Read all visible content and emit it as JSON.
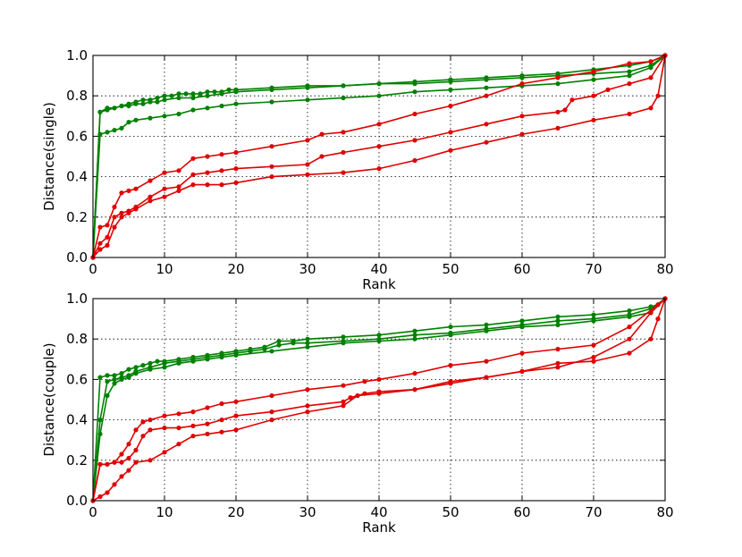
{
  "chart_data": [
    {
      "type": "line",
      "xlabel": "Rank",
      "ylabel": "Distance(single)",
      "xlim": [
        0,
        80
      ],
      "ylim": [
        0.0,
        1.0
      ],
      "xticks": [
        "0",
        "10",
        "20",
        "30",
        "40",
        "50",
        "60",
        "70",
        "80"
      ],
      "yticks": [
        "0.0",
        "0.2",
        "0.4",
        "0.6",
        "0.8",
        "1.0"
      ],
      "grid": true,
      "series": [
        {
          "color": "#008000",
          "x": [
            0,
            1,
            2,
            3,
            4,
            5,
            6,
            7,
            8,
            9,
            10,
            11,
            12,
            13,
            14,
            15,
            16,
            17,
            18,
            19,
            20,
            25,
            30,
            35,
            40,
            45,
            50,
            55,
            60,
            65,
            70,
            75,
            78,
            80
          ],
          "y": [
            0.0,
            0.72,
            0.73,
            0.74,
            0.75,
            0.76,
            0.77,
            0.78,
            0.78,
            0.79,
            0.8,
            0.8,
            0.81,
            0.81,
            0.81,
            0.81,
            0.82,
            0.82,
            0.82,
            0.83,
            0.83,
            0.84,
            0.85,
            0.85,
            0.86,
            0.87,
            0.88,
            0.89,
            0.9,
            0.91,
            0.93,
            0.95,
            0.97,
            1.0
          ]
        },
        {
          "color": "#008000",
          "x": [
            0,
            1,
            2,
            3,
            4,
            5,
            6,
            7,
            8,
            9,
            10,
            12,
            14,
            16,
            18,
            20,
            25,
            30,
            35,
            40,
            45,
            50,
            55,
            60,
            65,
            70,
            75,
            78,
            80
          ],
          "y": [
            0.0,
            0.72,
            0.74,
            0.74,
            0.75,
            0.75,
            0.76,
            0.76,
            0.77,
            0.77,
            0.78,
            0.79,
            0.79,
            0.8,
            0.81,
            0.82,
            0.83,
            0.84,
            0.85,
            0.86,
            0.86,
            0.87,
            0.88,
            0.89,
            0.9,
            0.91,
            0.92,
            0.95,
            1.0
          ]
        },
        {
          "color": "#008000",
          "x": [
            0,
            1,
            2,
            3,
            4,
            5,
            6,
            8,
            10,
            12,
            14,
            16,
            18,
            20,
            25,
            30,
            35,
            40,
            45,
            50,
            55,
            60,
            65,
            70,
            75,
            78,
            80
          ],
          "y": [
            0.0,
            0.61,
            0.62,
            0.63,
            0.64,
            0.67,
            0.68,
            0.69,
            0.7,
            0.71,
            0.73,
            0.74,
            0.75,
            0.76,
            0.77,
            0.78,
            0.79,
            0.8,
            0.82,
            0.83,
            0.84,
            0.85,
            0.86,
            0.88,
            0.9,
            0.94,
            1.0
          ]
        },
        {
          "color": "#e00000",
          "x": [
            0,
            1,
            2,
            3,
            4,
            5,
            6,
            8,
            10,
            12,
            14,
            16,
            18,
            20,
            25,
            30,
            32,
            35,
            40,
            45,
            50,
            55,
            60,
            65,
            70,
            75,
            78,
            80
          ],
          "y": [
            0.0,
            0.15,
            0.16,
            0.25,
            0.32,
            0.33,
            0.34,
            0.38,
            0.42,
            0.43,
            0.49,
            0.5,
            0.51,
            0.52,
            0.55,
            0.58,
            0.61,
            0.62,
            0.66,
            0.71,
            0.75,
            0.8,
            0.86,
            0.89,
            0.92,
            0.96,
            0.97,
            1.0
          ]
        },
        {
          "color": "#e00000",
          "x": [
            0,
            1,
            2,
            3,
            4,
            5,
            6,
            8,
            10,
            12,
            14,
            16,
            18,
            20,
            25,
            30,
            32,
            35,
            40,
            45,
            50,
            55,
            60,
            65,
            66,
            67,
            70,
            72,
            75,
            78,
            80
          ],
          "y": [
            0.0,
            0.07,
            0.1,
            0.2,
            0.22,
            0.23,
            0.25,
            0.3,
            0.34,
            0.35,
            0.41,
            0.42,
            0.43,
            0.44,
            0.45,
            0.46,
            0.5,
            0.52,
            0.55,
            0.58,
            0.62,
            0.66,
            0.7,
            0.72,
            0.73,
            0.78,
            0.8,
            0.83,
            0.86,
            0.89,
            1.0
          ]
        },
        {
          "color": "#e00000",
          "x": [
            0,
            1,
            2,
            3,
            4,
            5,
            6,
            8,
            10,
            12,
            14,
            16,
            18,
            20,
            25,
            30,
            35,
            40,
            45,
            50,
            55,
            60,
            65,
            70,
            75,
            78,
            79,
            80
          ],
          "y": [
            0.0,
            0.04,
            0.06,
            0.15,
            0.2,
            0.22,
            0.24,
            0.28,
            0.3,
            0.33,
            0.36,
            0.36,
            0.36,
            0.37,
            0.4,
            0.41,
            0.42,
            0.44,
            0.48,
            0.53,
            0.57,
            0.61,
            0.64,
            0.68,
            0.71,
            0.74,
            0.8,
            1.0
          ]
        }
      ]
    },
    {
      "type": "line",
      "xlabel": "Rank",
      "ylabel": "Distance(couple)",
      "xlim": [
        0,
        80
      ],
      "ylim": [
        0.0,
        1.0
      ],
      "xticks": [
        "0",
        "10",
        "20",
        "30",
        "40",
        "50",
        "60",
        "70",
        "80"
      ],
      "yticks": [
        "0.0",
        "0.2",
        "0.4",
        "0.6",
        "0.8",
        "1.0"
      ],
      "grid": true,
      "series": [
        {
          "color": "#008000",
          "x": [
            0,
            1,
            2,
            3,
            4,
            5,
            6,
            7,
            8,
            9,
            10,
            12,
            14,
            16,
            18,
            20,
            22,
            24,
            26,
            28,
            30,
            35,
            40,
            45,
            50,
            55,
            60,
            65,
            70,
            75,
            78,
            79,
            80
          ],
          "y": [
            0.0,
            0.61,
            0.62,
            0.62,
            0.63,
            0.65,
            0.66,
            0.67,
            0.68,
            0.69,
            0.69,
            0.7,
            0.71,
            0.72,
            0.73,
            0.74,
            0.75,
            0.76,
            0.79,
            0.79,
            0.8,
            0.81,
            0.82,
            0.84,
            0.86,
            0.87,
            0.89,
            0.91,
            0.92,
            0.94,
            0.96,
            0.97,
            1.0
          ]
        },
        {
          "color": "#008000",
          "x": [
            0,
            1,
            2,
            3,
            4,
            5,
            6,
            8,
            10,
            12,
            14,
            16,
            18,
            20,
            22,
            24,
            26,
            28,
            30,
            35,
            40,
            45,
            50,
            55,
            60,
            65,
            70,
            75,
            78,
            80
          ],
          "y": [
            0.0,
            0.4,
            0.59,
            0.6,
            0.61,
            0.62,
            0.64,
            0.66,
            0.68,
            0.69,
            0.7,
            0.71,
            0.72,
            0.73,
            0.74,
            0.75,
            0.77,
            0.78,
            0.78,
            0.79,
            0.8,
            0.82,
            0.83,
            0.85,
            0.87,
            0.89,
            0.9,
            0.92,
            0.95,
            1.0
          ]
        },
        {
          "color": "#008000",
          "x": [
            0,
            1,
            2,
            3,
            4,
            5,
            6,
            8,
            10,
            12,
            14,
            16,
            18,
            20,
            25,
            30,
            35,
            40,
            45,
            50,
            55,
            60,
            65,
            70,
            75,
            78,
            80
          ],
          "y": [
            0.0,
            0.33,
            0.52,
            0.58,
            0.6,
            0.61,
            0.63,
            0.65,
            0.66,
            0.68,
            0.69,
            0.7,
            0.71,
            0.72,
            0.74,
            0.76,
            0.78,
            0.79,
            0.8,
            0.82,
            0.84,
            0.86,
            0.87,
            0.89,
            0.91,
            0.93,
            1.0
          ]
        },
        {
          "color": "#e00000",
          "x": [
            0,
            1,
            2,
            3,
            4,
            5,
            6,
            7,
            8,
            10,
            12,
            14,
            16,
            18,
            20,
            25,
            30,
            35,
            38,
            40,
            45,
            50,
            55,
            60,
            65,
            70,
            75,
            79,
            80
          ],
          "y": [
            0.0,
            0.18,
            0.18,
            0.19,
            0.23,
            0.28,
            0.35,
            0.39,
            0.4,
            0.42,
            0.43,
            0.44,
            0.46,
            0.48,
            0.49,
            0.52,
            0.55,
            0.57,
            0.59,
            0.6,
            0.63,
            0.67,
            0.69,
            0.73,
            0.75,
            0.77,
            0.86,
            0.97,
            1.0
          ]
        },
        {
          "color": "#e00000",
          "x": [
            0,
            1,
            2,
            3,
            4,
            5,
            6,
            7,
            8,
            10,
            12,
            14,
            16,
            18,
            20,
            25,
            30,
            35,
            36,
            38,
            40,
            45,
            50,
            55,
            60,
            65,
            70,
            75,
            78,
            80
          ],
          "y": [
            0.0,
            0.18,
            0.18,
            0.19,
            0.19,
            0.21,
            0.25,
            0.32,
            0.35,
            0.36,
            0.36,
            0.37,
            0.38,
            0.4,
            0.42,
            0.44,
            0.47,
            0.49,
            0.51,
            0.53,
            0.54,
            0.55,
            0.58,
            0.61,
            0.64,
            0.66,
            0.71,
            0.8,
            0.93,
            1.0
          ]
        },
        {
          "color": "#e00000",
          "x": [
            0,
            1,
            2,
            3,
            4,
            5,
            6,
            8,
            10,
            12,
            14,
            16,
            18,
            20,
            25,
            30,
            35,
            37,
            40,
            45,
            50,
            55,
            60,
            65,
            70,
            75,
            78,
            79,
            80
          ],
          "y": [
            0.0,
            0.02,
            0.04,
            0.08,
            0.12,
            0.15,
            0.19,
            0.2,
            0.24,
            0.28,
            0.32,
            0.33,
            0.34,
            0.35,
            0.4,
            0.44,
            0.47,
            0.52,
            0.53,
            0.55,
            0.59,
            0.61,
            0.64,
            0.68,
            0.69,
            0.73,
            0.8,
            0.9,
            1.0
          ]
        }
      ]
    }
  ]
}
